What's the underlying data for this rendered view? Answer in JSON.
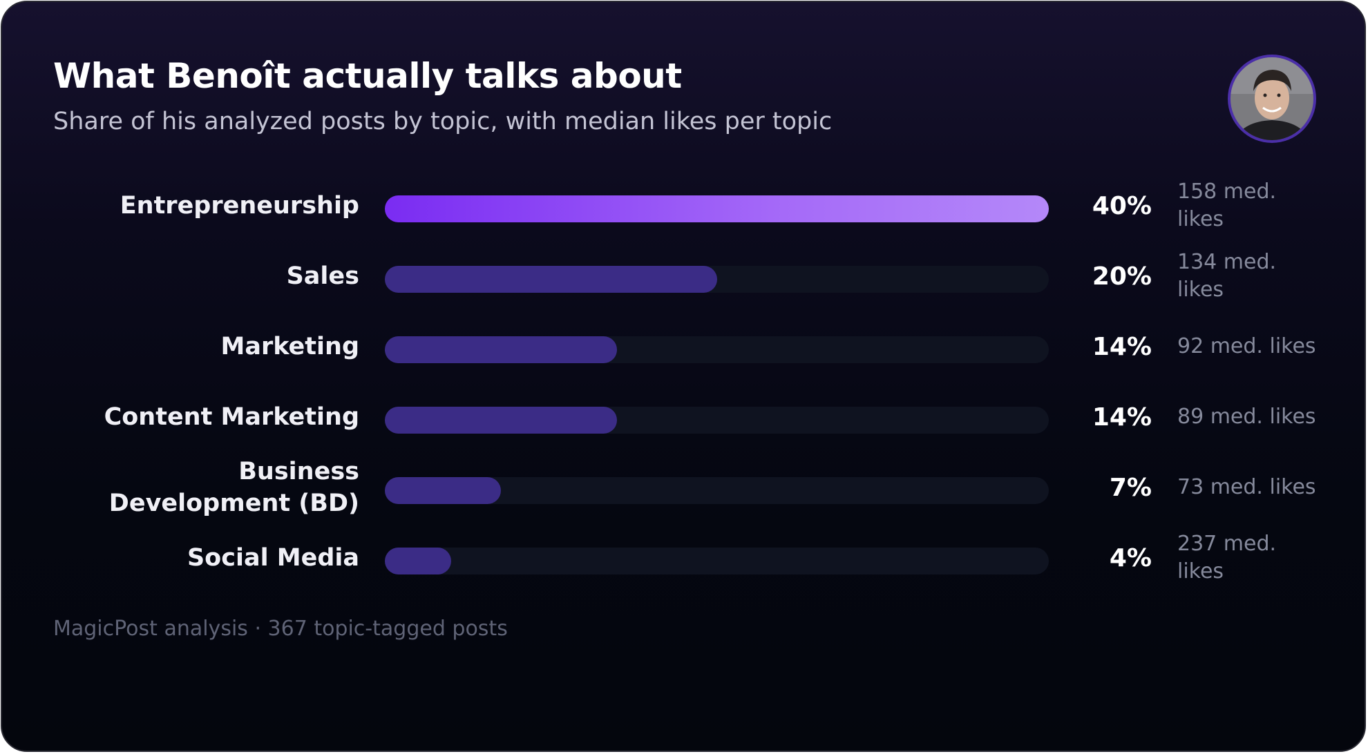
{
  "header": {
    "title": "What Benoît actually talks about",
    "subtitle": "Share of his analyzed posts by topic, with median likes per topic"
  },
  "footer": "MagicPost analysis · 367 topic-tagged posts",
  "colors": {
    "top_bar_start": "#7a2cf2",
    "top_bar_end": "#b488f9",
    "bar": "#3b2c86",
    "track": "#0f1320",
    "avatar_ring": "#4b2fa8"
  },
  "chart_data": {
    "type": "bar",
    "orientation": "horizontal",
    "title": "What Benoît actually talks about",
    "subtitle": "Share of his analyzed posts by topic, with median likes per topic",
    "xlim": [
      0,
      40
    ],
    "grid": false,
    "legend": "none",
    "categories": [
      "Entrepreneurship",
      "Sales",
      "Marketing",
      "Content Marketing",
      "Business Development (BD)",
      "Social Media"
    ],
    "values": [
      40,
      20,
      14,
      14,
      7,
      4
    ],
    "value_labels": [
      "40%",
      "20%",
      "14%",
      "14%",
      "7%",
      "4%"
    ],
    "median_likes": [
      158,
      134,
      92,
      89,
      73,
      237
    ],
    "median_likes_labels": [
      "158 med. likes",
      "134 med. likes",
      "92 med. likes",
      "89 med. likes",
      "73 med. likes",
      "237 med. likes"
    ]
  }
}
